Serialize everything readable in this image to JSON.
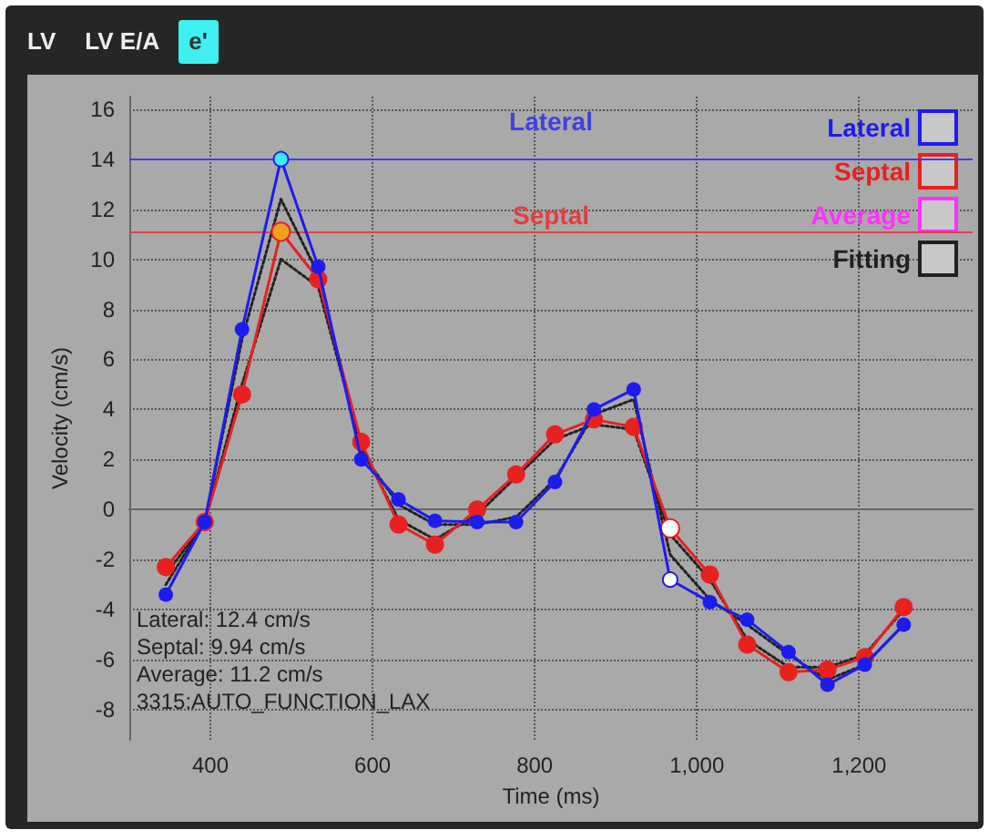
{
  "chart_data": {
    "type": "line",
    "xlabel": "Time (ms)",
    "ylabel": "Velocity (cm/s)",
    "x": [
      345,
      393,
      439,
      487,
      533,
      586,
      632,
      677,
      729,
      777,
      825,
      873,
      922,
      967,
      1016,
      1062,
      1113,
      1161,
      1207,
      1255
    ],
    "series": [
      {
        "name": "Lateral",
        "color": "#1c1cf0",
        "colors": [
          "#1c1cf0",
          "#1c1cf0",
          "#1c1cf0",
          "#40e8f0",
          "#1c1cf0",
          "#1c1cf0",
          "#1c1cf0",
          "#1c1cf0",
          "#1c1cf0",
          "#1c1cf0",
          "#1c1cf0",
          "#1c1cf0",
          "#1c1cf0",
          "#ffffff",
          "#1c1cf0",
          "#1c1cf0",
          "#1c1cf0",
          "#1c1cf0",
          "#1c1cf0",
          "#1c1cf0"
        ],
        "values": [
          -3.4,
          -0.5,
          7.2,
          14.0,
          9.7,
          2.0,
          0.4,
          -0.45,
          -0.5,
          -0.5,
          1.1,
          4.0,
          4.8,
          -2.8,
          -3.7,
          -4.4,
          -5.7,
          -7.0,
          -6.2,
          -4.6
        ]
      },
      {
        "name": "Septal",
        "color": "#e82020",
        "colors": [
          "#e82020",
          "#e82020",
          "#e82020",
          "#f0a020",
          "#e82020",
          "#e82020",
          "#e82020",
          "#e82020",
          "#e82020",
          "#e82020",
          "#e82020",
          "#e82020",
          "#e82020",
          "#ffffff",
          "#e82020",
          "#e82020",
          "#e82020",
          "#e82020",
          "#e82020",
          "#e82020"
        ],
        "values": [
          -2.3,
          -0.5,
          4.6,
          11.1,
          9.2,
          2.7,
          -0.6,
          -1.4,
          0.0,
          1.4,
          3.0,
          3.6,
          3.3,
          -0.75,
          -2.6,
          -5.4,
          -6.5,
          -6.4,
          -5.9,
          -3.9
        ]
      },
      {
        "name": "Average",
        "color": "#ff30ff",
        "values": [
          null,
          null,
          null,
          null,
          null,
          null,
          null,
          null,
          null,
          null,
          null,
          null,
          null,
          null,
          null,
          null,
          null,
          null,
          null,
          null
        ]
      },
      {
        "name": "Fitting",
        "color": "#202020",
        "marker": "none",
        "line_style": "dotted",
        "values": [
          -3.0,
          -0.5,
          6.8,
          12.4,
          9.4,
          2.3,
          0.2,
          -0.6,
          -0.6,
          -0.3,
          1.2,
          3.8,
          4.4,
          -1.8,
          -3.6,
          -4.6,
          -5.8,
          -6.8,
          -6.2,
          -4.6
        ]
      },
      {
        "color": "#202020",
        "marker": "none",
        "line_style": "dotted",
        "values": [
          -2.6,
          -0.5,
          5.0,
          10.0,
          8.9,
          2.5,
          -0.4,
          -1.2,
          -0.2,
          1.3,
          2.8,
          3.4,
          3.2,
          -1.0,
          -2.8,
          -5.2,
          -6.3,
          -6.3,
          -5.8,
          -4.0
        ]
      }
    ],
    "xlim": [
      300,
      1340
    ],
    "xticks": [
      400,
      600,
      800,
      {
        "value": 1000,
        "label": "1,000"
      },
      {
        "value": 1200,
        "label": "1,200"
      }
    ],
    "ylim": [
      -9.2,
      16.5
    ],
    "yticks": [
      -8,
      -6,
      -4,
      -2,
      0,
      2,
      4,
      6,
      8,
      10,
      12,
      14,
      16
    ],
    "ref_lines": [
      {
        "axis": "y",
        "value": 14.0,
        "label": "Lateral",
        "color": "#4040e0"
      },
      {
        "axis": "y",
        "value": 11.1,
        "label": "Septal",
        "color": "#e04040"
      }
    ],
    "annotations": [
      "LV",
      "LV E/A",
      "e'",
      "Lateral: 12.4 cm/s",
      "Septal: 9.94 cm/s",
      "Average: 11.2 cm/s",
      "3315:AUTO_FUNCTION_LAX"
    ],
    "grid": true,
    "legend": "top right",
    "marker": "circle",
    "line_style": "solid"
  }
}
